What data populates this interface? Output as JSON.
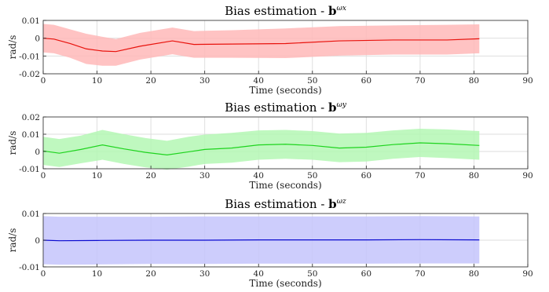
{
  "chart_data": [
    {
      "type": "line",
      "title": "Bias estimation - ",
      "title_bold": "b",
      "title_sup": "ωx",
      "xlabel": "Time (seconds)",
      "ylabel": "rad/s",
      "xlim": [
        0,
        90
      ],
      "ylim": [
        -0.02,
        0.01
      ],
      "xticks": [
        "0",
        "10",
        "20",
        "30",
        "40",
        "50",
        "60",
        "70",
        "80",
        "90"
      ],
      "yticks": [
        "0.01",
        "0",
        "-0.01",
        "-0.02"
      ],
      "ytick_values": [
        0.01,
        0,
        -0.01,
        -0.02
      ],
      "grid": true,
      "line_color": "#e8120c",
      "band_color": "#ffb8b8",
      "series": [
        {
          "x": [
            0,
            2,
            5,
            8,
            11,
            13.5,
            18,
            24,
            28,
            35,
            45,
            55,
            65,
            75,
            81
          ],
          "mean": [
            0.0,
            -0.0005,
            -0.003,
            -0.006,
            -0.0072,
            -0.0075,
            -0.0045,
            -0.0015,
            -0.0035,
            -0.0033,
            -0.003,
            -0.0015,
            -0.001,
            -0.001,
            -0.0003
          ],
          "upper": [
            0.008,
            0.0075,
            0.005,
            0.0025,
            0.0008,
            -0.0005,
            0.003,
            0.006,
            0.004,
            0.0045,
            0.0055,
            0.0068,
            0.0072,
            0.0075,
            0.0078
          ],
          "lower": [
            -0.008,
            -0.0085,
            -0.011,
            -0.0145,
            -0.0155,
            -0.0155,
            -0.012,
            -0.009,
            -0.011,
            -0.011,
            -0.0112,
            -0.0098,
            -0.0092,
            -0.0092,
            -0.0085
          ]
        }
      ]
    },
    {
      "type": "line",
      "title": "Bias estimation - ",
      "title_bold": "b",
      "title_sup": "ωy",
      "xlabel": "Time (seconds)",
      "ylabel": "rad/s",
      "xlim": [
        0,
        90
      ],
      "ylim": [
        -0.01,
        0.02
      ],
      "xticks": [
        "0",
        "10",
        "20",
        "30",
        "40",
        "50",
        "60",
        "70",
        "80",
        "90"
      ],
      "yticks": [
        "0.02",
        "0.01",
        "0",
        "-0.01"
      ],
      "ytick_values": [
        0.02,
        0.01,
        0,
        -0.01
      ],
      "grid": true,
      "line_color": "#1ed41e",
      "band_color": "#b4f7b4",
      "series": [
        {
          "x": [
            0,
            3,
            7,
            11,
            15,
            19,
            23,
            27,
            30,
            35,
            40,
            45,
            50,
            55,
            60,
            65,
            70,
            75,
            81
          ],
          "mean": [
            0.0003,
            -0.001,
            0.0012,
            0.0038,
            0.0015,
            -0.0005,
            -0.002,
            -0.0002,
            0.0012,
            0.002,
            0.0038,
            0.0042,
            0.0035,
            0.002,
            0.0025,
            0.004,
            0.005,
            0.0045,
            0.0035
          ],
          "upper": [
            0.0085,
            0.0072,
            0.0092,
            0.0125,
            0.01,
            0.0078,
            0.0062,
            0.0085,
            0.0098,
            0.0108,
            0.0122,
            0.0125,
            0.0118,
            0.0104,
            0.0108,
            0.0122,
            0.0132,
            0.0128,
            0.0118
          ],
          "lower": [
            -0.0078,
            -0.009,
            -0.0068,
            -0.0048,
            -0.0072,
            -0.0092,
            -0.0105,
            -0.0088,
            -0.0072,
            -0.0065,
            -0.0048,
            -0.0042,
            -0.0048,
            -0.0062,
            -0.0058,
            -0.0042,
            -0.0032,
            -0.0038,
            -0.0048
          ]
        }
      ]
    },
    {
      "type": "line",
      "title": "Bias estimation - ",
      "title_bold": "b",
      "title_sup": "ωz",
      "xlabel": "Time (seconds)",
      "ylabel": "rad/s",
      "xlim": [
        0,
        90
      ],
      "ylim": [
        -0.01,
        0.01
      ],
      "xticks": [
        "0",
        "10",
        "20",
        "30",
        "40",
        "50",
        "60",
        "70",
        "80",
        "90"
      ],
      "yticks": [
        "0.01",
        "0",
        "-0.01"
      ],
      "ytick_values": [
        0.01,
        0,
        -0.01
      ],
      "grid": true,
      "line_color": "#0a0ad0",
      "band_color": "#c4c4fb",
      "series": [
        {
          "x": [
            0,
            3,
            10,
            20,
            30,
            40,
            50,
            60,
            70,
            81
          ],
          "mean": [
            0.0,
            -0.0002,
            -0.0001,
            0.0,
            0.0,
            0.0001,
            0.0001,
            0.0001,
            0.0002,
            0.0001
          ],
          "upper": [
            0.009,
            0.0088,
            0.0088,
            0.0088,
            0.0089,
            0.0089,
            0.0089,
            0.0089,
            0.009,
            0.0089
          ],
          "lower": [
            -0.009,
            -0.0092,
            -0.0091,
            -0.0089,
            -0.0089,
            -0.0088,
            -0.0088,
            -0.0088,
            -0.0087,
            -0.0087
          ]
        }
      ]
    }
  ]
}
